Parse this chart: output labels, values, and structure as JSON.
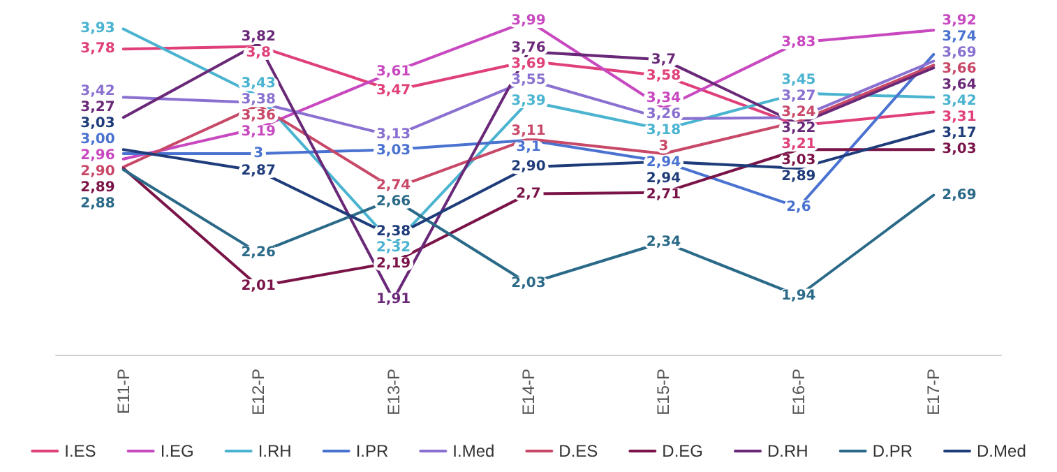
{
  "chart_data": {
    "type": "line",
    "categories": [
      "E11-P",
      "E12-P",
      "E13-P",
      "E14-P",
      "E15-P",
      "E16-P",
      "E17-P"
    ],
    "line_style": "solid",
    "grid": false,
    "legend": "bottom",
    "series": [
      {
        "name": "I.ES",
        "color": "#e0407a",
        "values": [
          3.78,
          3.8,
          3.47,
          3.69,
          3.58,
          3.21,
          3.31
        ],
        "value_labels": [
          "3,78",
          "3,8",
          "3,47",
          "3,69",
          "3,58",
          "3,21",
          "3,31"
        ]
      },
      {
        "name": "I.EG",
        "color": "#c848c0",
        "values": [
          2.96,
          3.19,
          3.61,
          3.99,
          3.34,
          3.83,
          3.92
        ],
        "value_labels": [
          "2,96",
          "3,19",
          "3,61",
          "3,99",
          "3,34",
          "3,83",
          "3,92"
        ]
      },
      {
        "name": "I.RH",
        "color": "#4ab4d0",
        "values": [
          3.93,
          3.43,
          2.32,
          3.39,
          3.18,
          3.45,
          3.42
        ],
        "value_labels": [
          "3,93",
          "3,43",
          "2,32",
          "3,39",
          "3,18",
          "3,45",
          "3,42"
        ]
      },
      {
        "name": "I.PR",
        "color": "#4a72d0",
        "values": [
          3.0,
          3.0,
          3.03,
          3.1,
          2.94,
          2.6,
          3.74
        ],
        "value_labels": [
          "3,00",
          "3",
          "3,03",
          "3,1",
          "2,94",
          "2,6",
          "3,74"
        ]
      },
      {
        "name": "I.Med",
        "color": "#8a70d0",
        "values": [
          3.42,
          3.38,
          3.13,
          3.55,
          3.26,
          3.27,
          3.69
        ],
        "value_labels": [
          "3,42",
          "3,38",
          "3,13",
          "3,55",
          "3,26",
          "3,27",
          "3,69"
        ]
      },
      {
        "name": "D.ES",
        "color": "#c84868",
        "values": [
          2.9,
          3.36,
          2.74,
          3.11,
          3.0,
          3.24,
          3.66
        ],
        "value_labels": [
          "2,90",
          "3,36",
          "2,74",
          "3,11",
          "3",
          "3,24",
          "3,66"
        ]
      },
      {
        "name": "D.EG",
        "color": "#7a1448",
        "values": [
          2.89,
          2.01,
          2.19,
          2.7,
          2.71,
          3.03,
          3.03
        ],
        "value_labels": [
          "2,89",
          "2,01",
          "2,19",
          "2,7",
          "2,71",
          "3,03",
          "3,03"
        ]
      },
      {
        "name": "D.RH",
        "color": "#6a2878",
        "values": [
          3.27,
          3.82,
          1.91,
          3.76,
          3.7,
          3.22,
          3.64
        ],
        "value_labels": [
          "3,27",
          "3,82",
          "1,91",
          "3,76",
          "3,7",
          "3,22",
          "3,64"
        ]
      },
      {
        "name": "D.PR",
        "color": "#2a6a88",
        "values": [
          2.88,
          2.26,
          2.66,
          2.03,
          2.34,
          1.94,
          2.69
        ],
        "value_labels": [
          "2,88",
          "2,26",
          "2,66",
          "2,03",
          "2,34",
          "1,94",
          "2,69"
        ]
      },
      {
        "name": "D.Med",
        "color": "#1f3c7a",
        "values": [
          3.03,
          2.87,
          2.38,
          2.9,
          2.94,
          2.89,
          3.17
        ],
        "value_labels": [
          "3,03",
          "2,87",
          "2,38",
          "2,90",
          "2,94",
          "2,89",
          "3,17"
        ]
      }
    ]
  }
}
